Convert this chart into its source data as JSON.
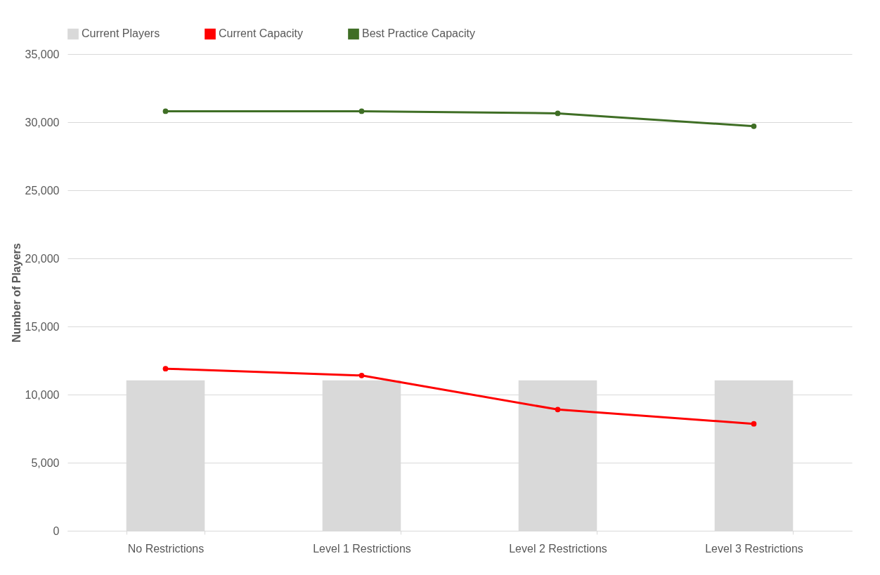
{
  "chart_data": {
    "type": "bar",
    "ylabel": "Number of Players",
    "categories": [
      "No Restrictions",
      "Level 1 Restrictions",
      "Level 2 Restrictions",
      "Level 3 Restrictions"
    ],
    "series": [
      {
        "name": "Current Players",
        "color": "#d9d9d9",
        "values": [
          11050,
          11050,
          11050,
          11050
        ]
      },
      {
        "name": "Current Capacity",
        "type": "line",
        "color": "#ff0000",
        "values": [
          11900,
          11400,
          8900,
          7850
        ]
      },
      {
        "name": "Best Practice Capacity",
        "type": "line",
        "color": "#3f6e25",
        "values": [
          30800,
          30800,
          30650,
          29700
        ]
      }
    ],
    "ylim": [
      0,
      35000
    ],
    "yticks": [
      0,
      {
        "value": 5000,
        "label": "5,000"
      },
      {
        "value": 10000,
        "label": "10,000"
      },
      {
        "value": 15000,
        "label": "15,000"
      },
      {
        "value": 20000,
        "label": "20,000"
      },
      {
        "value": 25000,
        "label": "25,000"
      },
      {
        "value": 30000,
        "label": "30,000"
      },
      {
        "value": 35000,
        "label": "35,000"
      }
    ],
    "grid": "y",
    "legend": "top",
    "marker": "circle",
    "line_style": "solid"
  }
}
